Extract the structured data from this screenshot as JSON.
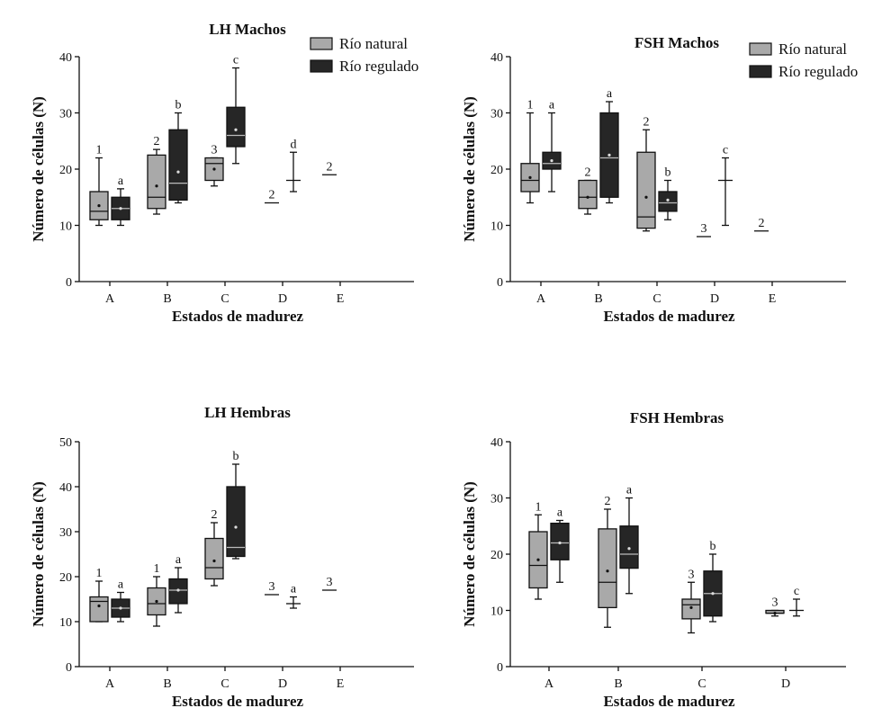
{
  "colors": {
    "natural": "#a9a9a9",
    "regulado": "#262626",
    "stroke": "#111111"
  },
  "legend": {
    "natural": "Río natural",
    "regulado": "Río regulado"
  },
  "chart_data": [
    {
      "type": "box",
      "title": "LH Machos",
      "xlabel": "Estados de madurez",
      "ylabel": "Número de células (N)",
      "ylim": [
        0,
        40
      ],
      "yticks": [
        0,
        10,
        20,
        30,
        40
      ],
      "categories": [
        "A",
        "B",
        "C",
        "D",
        "E"
      ],
      "legend": true,
      "series": [
        {
          "name": "Río natural",
          "boxes": [
            {
              "cat": "A",
              "min": 10,
              "q1": 11,
              "med": 12.5,
              "q3": 16,
              "max": 22,
              "mean": 13.5,
              "label": "1"
            },
            {
              "cat": "B",
              "min": 12,
              "q1": 13,
              "med": 15,
              "q3": 22.5,
              "max": 23.5,
              "mean": 17,
              "label": "2"
            },
            {
              "cat": "C",
              "min": 17,
              "q1": 18,
              "med": 21,
              "q3": 22,
              "max": 22,
              "mean": 20,
              "label": "3"
            },
            {
              "cat": "D",
              "min": 14,
              "q1": 14,
              "med": 14,
              "q3": 14,
              "max": 14,
              "mean": 14,
              "label": "2"
            },
            {
              "cat": "E",
              "min": 19,
              "q1": 19,
              "med": 19,
              "q3": 19,
              "max": 19,
              "mean": 19,
              "label": "2"
            }
          ]
        },
        {
          "name": "Río regulado",
          "boxes": [
            {
              "cat": "A",
              "min": 10,
              "q1": 11,
              "med": 13,
              "q3": 15,
              "max": 16.5,
              "mean": 13,
              "label": "a"
            },
            {
              "cat": "B",
              "min": 14,
              "q1": 14.5,
              "med": 17.5,
              "q3": 27,
              "max": 30,
              "mean": 19.5,
              "label": "b"
            },
            {
              "cat": "C",
              "min": 21,
              "q1": 24,
              "med": 26,
              "q3": 31,
              "max": 38,
              "mean": 27,
              "label": "c"
            },
            {
              "cat": "D",
              "min": 16,
              "q1": 18,
              "med": 18,
              "q3": 18,
              "max": 23,
              "mean": 18.5,
              "label": "d"
            }
          ]
        }
      ]
    },
    {
      "type": "box",
      "title": "FSH Machos",
      "xlabel": "Estados de madurez",
      "ylabel": "Número de células (N)",
      "ylim": [
        0,
        40
      ],
      "yticks": [
        0,
        10,
        20,
        30,
        40
      ],
      "categories": [
        "A",
        "B",
        "C",
        "D",
        "E"
      ],
      "legend": true,
      "series": [
        {
          "name": "Río natural",
          "boxes": [
            {
              "cat": "A",
              "min": 14,
              "q1": 16,
              "med": 18,
              "q3": 21,
              "max": 30,
              "mean": 18.5,
              "label": "1"
            },
            {
              "cat": "B",
              "min": 12,
              "q1": 13,
              "med": 15,
              "q3": 18,
              "max": 18,
              "mean": 15,
              "label": "2"
            },
            {
              "cat": "C",
              "min": 9,
              "q1": 9.5,
              "med": 11.5,
              "q3": 23,
              "max": 27,
              "mean": 15,
              "label": "2"
            },
            {
              "cat": "D",
              "min": 8,
              "q1": 8,
              "med": 8,
              "q3": 8,
              "max": 8,
              "mean": 8,
              "label": "3"
            },
            {
              "cat": "E",
              "min": 9,
              "q1": 9,
              "med": 9,
              "q3": 9,
              "max": 9,
              "mean": 9,
              "label": "2"
            }
          ]
        },
        {
          "name": "Río regulado",
          "boxes": [
            {
              "cat": "A",
              "min": 16,
              "q1": 20,
              "med": 21,
              "q3": 23,
              "max": 30,
              "mean": 21.5,
              "label": "a"
            },
            {
              "cat": "B",
              "min": 14,
              "q1": 15,
              "med": 22,
              "q3": 30,
              "max": 32,
              "mean": 22.5,
              "label": "a"
            },
            {
              "cat": "C",
              "min": 11,
              "q1": 12.5,
              "med": 14,
              "q3": 16,
              "max": 18,
              "mean": 14.5,
              "label": "b"
            },
            {
              "cat": "D",
              "min": 10,
              "q1": 18,
              "med": 18,
              "q3": 18,
              "max": 22,
              "mean": 17,
              "label": "c"
            }
          ]
        }
      ]
    },
    {
      "type": "box",
      "title": "LH Hembras",
      "xlabel": "Estados de madurez",
      "ylabel": "Número de células (N)",
      "ylim": [
        0,
        50
      ],
      "yticks": [
        0,
        10,
        20,
        30,
        40,
        50
      ],
      "categories": [
        "A",
        "B",
        "C",
        "D",
        "E"
      ],
      "legend": false,
      "series": [
        {
          "name": "Río natural",
          "boxes": [
            {
              "cat": "A",
              "min": 10,
              "q1": 10,
              "med": 14.5,
              "q3": 15.5,
              "max": 19,
              "mean": 13.5,
              "label": "1"
            },
            {
              "cat": "B",
              "min": 9,
              "q1": 11.5,
              "med": 14,
              "q3": 17.5,
              "max": 20,
              "mean": 14.5,
              "label": "1"
            },
            {
              "cat": "C",
              "min": 18,
              "q1": 19.5,
              "med": 22,
              "q3": 28.5,
              "max": 32,
              "mean": 23.5,
              "label": "2"
            },
            {
              "cat": "D",
              "min": 16,
              "q1": 16,
              "med": 16,
              "q3": 16,
              "max": 16,
              "mean": 16,
              "label": "3"
            },
            {
              "cat": "E",
              "min": 17,
              "q1": 17,
              "med": 17,
              "q3": 17,
              "max": 17,
              "mean": 17,
              "label": "3"
            }
          ]
        },
        {
          "name": "Río regulado",
          "boxes": [
            {
              "cat": "A",
              "min": 10,
              "q1": 11,
              "med": 13,
              "q3": 15,
              "max": 16.5,
              "mean": 13,
              "label": "a"
            },
            {
              "cat": "B",
              "min": 12,
              "q1": 14,
              "med": 17,
              "q3": 19.5,
              "max": 22,
              "mean": 17,
              "label": "a"
            },
            {
              "cat": "C",
              "min": 24,
              "q1": 24.5,
              "med": 26.5,
              "q3": 40,
              "max": 45,
              "mean": 31,
              "label": "b"
            },
            {
              "cat": "D",
              "min": 13,
              "q1": 14,
              "med": 14,
              "q3": 14,
              "max": 15.5,
              "mean": 14,
              "label": "a"
            }
          ]
        }
      ]
    },
    {
      "type": "box",
      "title": "FSH Hembras",
      "xlabel": "Estados de madurez",
      "ylabel": "Número de células (N)",
      "ylim": [
        0,
        40
      ],
      "yticks": [
        0,
        10,
        20,
        30,
        40
      ],
      "categories": [
        "A",
        "B",
        "C",
        "D"
      ],
      "legend": false,
      "series": [
        {
          "name": "Río natural",
          "boxes": [
            {
              "cat": "A",
              "min": 12,
              "q1": 14,
              "med": 18,
              "q3": 24,
              "max": 27,
              "mean": 19,
              "label": "1"
            },
            {
              "cat": "B",
              "min": 7,
              "q1": 10.5,
              "med": 15,
              "q3": 24.5,
              "max": 28,
              "mean": 17,
              "label": "2"
            },
            {
              "cat": "C",
              "min": 6,
              "q1": 8.5,
              "med": 11,
              "q3": 12,
              "max": 15,
              "mean": 10.5,
              "label": "3"
            },
            {
              "cat": "D",
              "min": 9,
              "q1": 9.5,
              "med": 9.5,
              "q3": 10,
              "max": 10,
              "mean": 9.5,
              "label": "3"
            }
          ]
        },
        {
          "name": "Río regulado",
          "boxes": [
            {
              "cat": "A",
              "min": 15,
              "q1": 19,
              "med": 22,
              "q3": 25.5,
              "max": 26,
              "mean": 22,
              "label": "a"
            },
            {
              "cat": "B",
              "min": 13,
              "q1": 17.5,
              "med": 20,
              "q3": 25,
              "max": 30,
              "mean": 21,
              "label": "a"
            },
            {
              "cat": "C",
              "min": 8,
              "q1": 9,
              "med": 13,
              "q3": 17,
              "max": 20,
              "mean": 13,
              "label": "b"
            },
            {
              "cat": "D",
              "min": 9,
              "q1": 10,
              "med": 10,
              "q3": 10,
              "max": 12,
              "mean": 10,
              "label": "c"
            }
          ]
        }
      ]
    }
  ]
}
